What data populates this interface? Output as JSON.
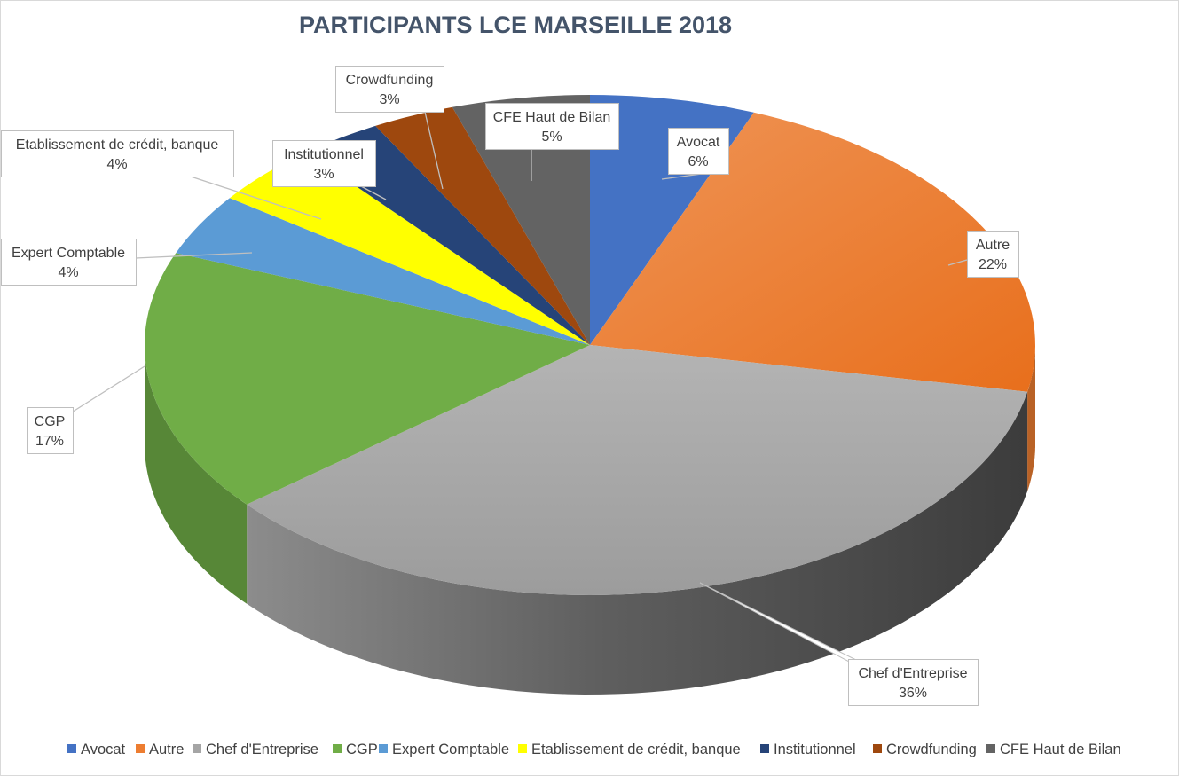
{
  "chart_data": {
    "type": "pie",
    "style": "3d",
    "title": "PARTICIPANTS LCE MARSEILLE 2018",
    "legend_position": "bottom",
    "slices": [
      {
        "name": "Avocat",
        "value": 6,
        "label": "6%",
        "color": "#4472c4"
      },
      {
        "name": "Autre",
        "value": 22,
        "label": "22%",
        "color": "#ed7d31"
      },
      {
        "name": "Chef d'Entreprise",
        "value": 36,
        "label": "36%",
        "color": "#a5a5a5"
      },
      {
        "name": "CGP",
        "value": 17,
        "label": "17%",
        "color": "#70ad47"
      },
      {
        "name": "Expert Comptable",
        "value": 4,
        "label": "4%",
        "color": "#5b9bd5"
      },
      {
        "name": "Etablissement de crédit, banque",
        "value": 4,
        "label": "4%",
        "color": "#ffff00"
      },
      {
        "name": "Institutionnel",
        "value": 3,
        "label": "3%",
        "color": "#264478"
      },
      {
        "name": "Crowdfunding",
        "value": 3,
        "label": "3%",
        "color": "#9e480e"
      },
      {
        "name": "CFE Haut de Bilan",
        "value": 5,
        "label": "5%",
        "color": "#636363"
      }
    ]
  }
}
